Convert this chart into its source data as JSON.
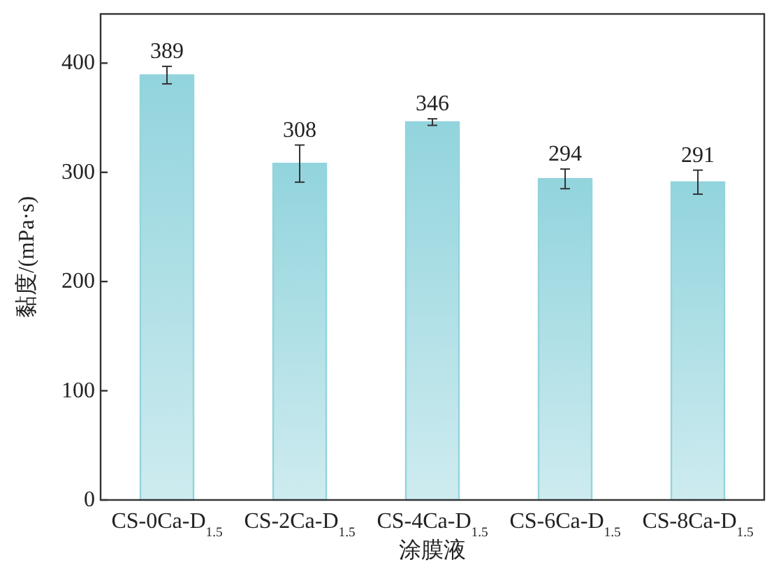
{
  "chart_data": {
    "type": "bar",
    "xlabel": "涂膜液",
    "ylabel": "黏度/(mPa·s)",
    "categories": [
      "CS-0Ca-D$_{1.5}$",
      "CS-2Ca-D$_{1.5}$",
      "CS-4Ca-D$_{1.5}$",
      "CS-6Ca-D$_{1.5}$",
      "CS-8Ca-D$_{1.5}$"
    ],
    "values": [
      389,
      308,
      346,
      294,
      291
    ],
    "errors": [
      8,
      17,
      3,
      9,
      11
    ],
    "color": "#92d4dd",
    "data_labels": true,
    "ylim": [
      0,
      445
    ],
    "yticks": [
      0,
      100,
      200,
      300,
      400
    ],
    "grid": false
  }
}
